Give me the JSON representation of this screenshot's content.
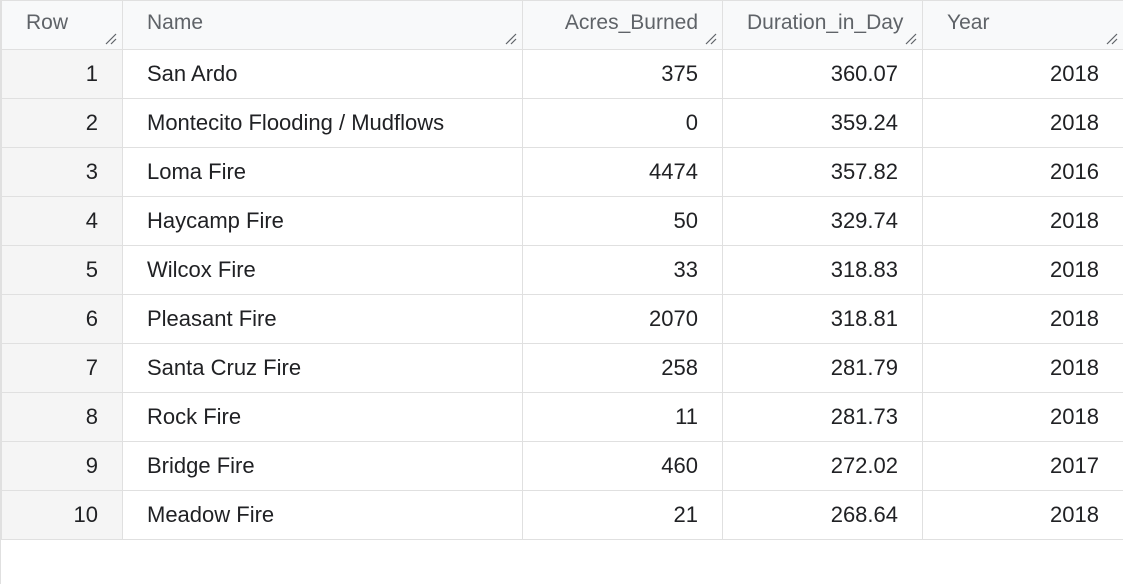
{
  "table": {
    "columns": [
      {
        "label": "Row",
        "align": "left"
      },
      {
        "label": "Name",
        "align": "left"
      },
      {
        "label": "Acres_Burned",
        "align": "right"
      },
      {
        "label": "Duration_in_Day",
        "align": "right"
      },
      {
        "label": "Year",
        "align": "left"
      }
    ],
    "rows": [
      {
        "row": "1",
        "name": "San Ardo",
        "acres": "375",
        "duration": "360.07",
        "year": "2018"
      },
      {
        "row": "2",
        "name": "Montecito Flooding / Mudflows",
        "acres": "0",
        "duration": "359.24",
        "year": "2018"
      },
      {
        "row": "3",
        "name": "Loma Fire",
        "acres": "4474",
        "duration": "357.82",
        "year": "2016"
      },
      {
        "row": "4",
        "name": "Haycamp Fire",
        "acres": "50",
        "duration": "329.74",
        "year": "2018"
      },
      {
        "row": "5",
        "name": "Wilcox Fire",
        "acres": "33",
        "duration": "318.83",
        "year": "2018"
      },
      {
        "row": "6",
        "name": "Pleasant Fire",
        "acres": "2070",
        "duration": "318.81",
        "year": "2018"
      },
      {
        "row": "7",
        "name": "Santa Cruz Fire",
        "acres": "258",
        "duration": "281.79",
        "year": "2018"
      },
      {
        "row": "8",
        "name": "Rock Fire",
        "acres": "11",
        "duration": "281.73",
        "year": "2018"
      },
      {
        "row": "9",
        "name": "Bridge Fire",
        "acres": "460",
        "duration": "272.02",
        "year": "2017"
      },
      {
        "row": "10",
        "name": "Meadow Fire",
        "acres": "21",
        "duration": "268.64",
        "year": "2018"
      }
    ]
  },
  "icons": {
    "resize": "column-resize-grip-icon"
  },
  "colors": {
    "header_bg": "#f8f9fa",
    "rownum_bg": "#f5f5f5",
    "border": "#e0e0e0",
    "header_text": "#5f6368",
    "cell_text": "#202124"
  }
}
